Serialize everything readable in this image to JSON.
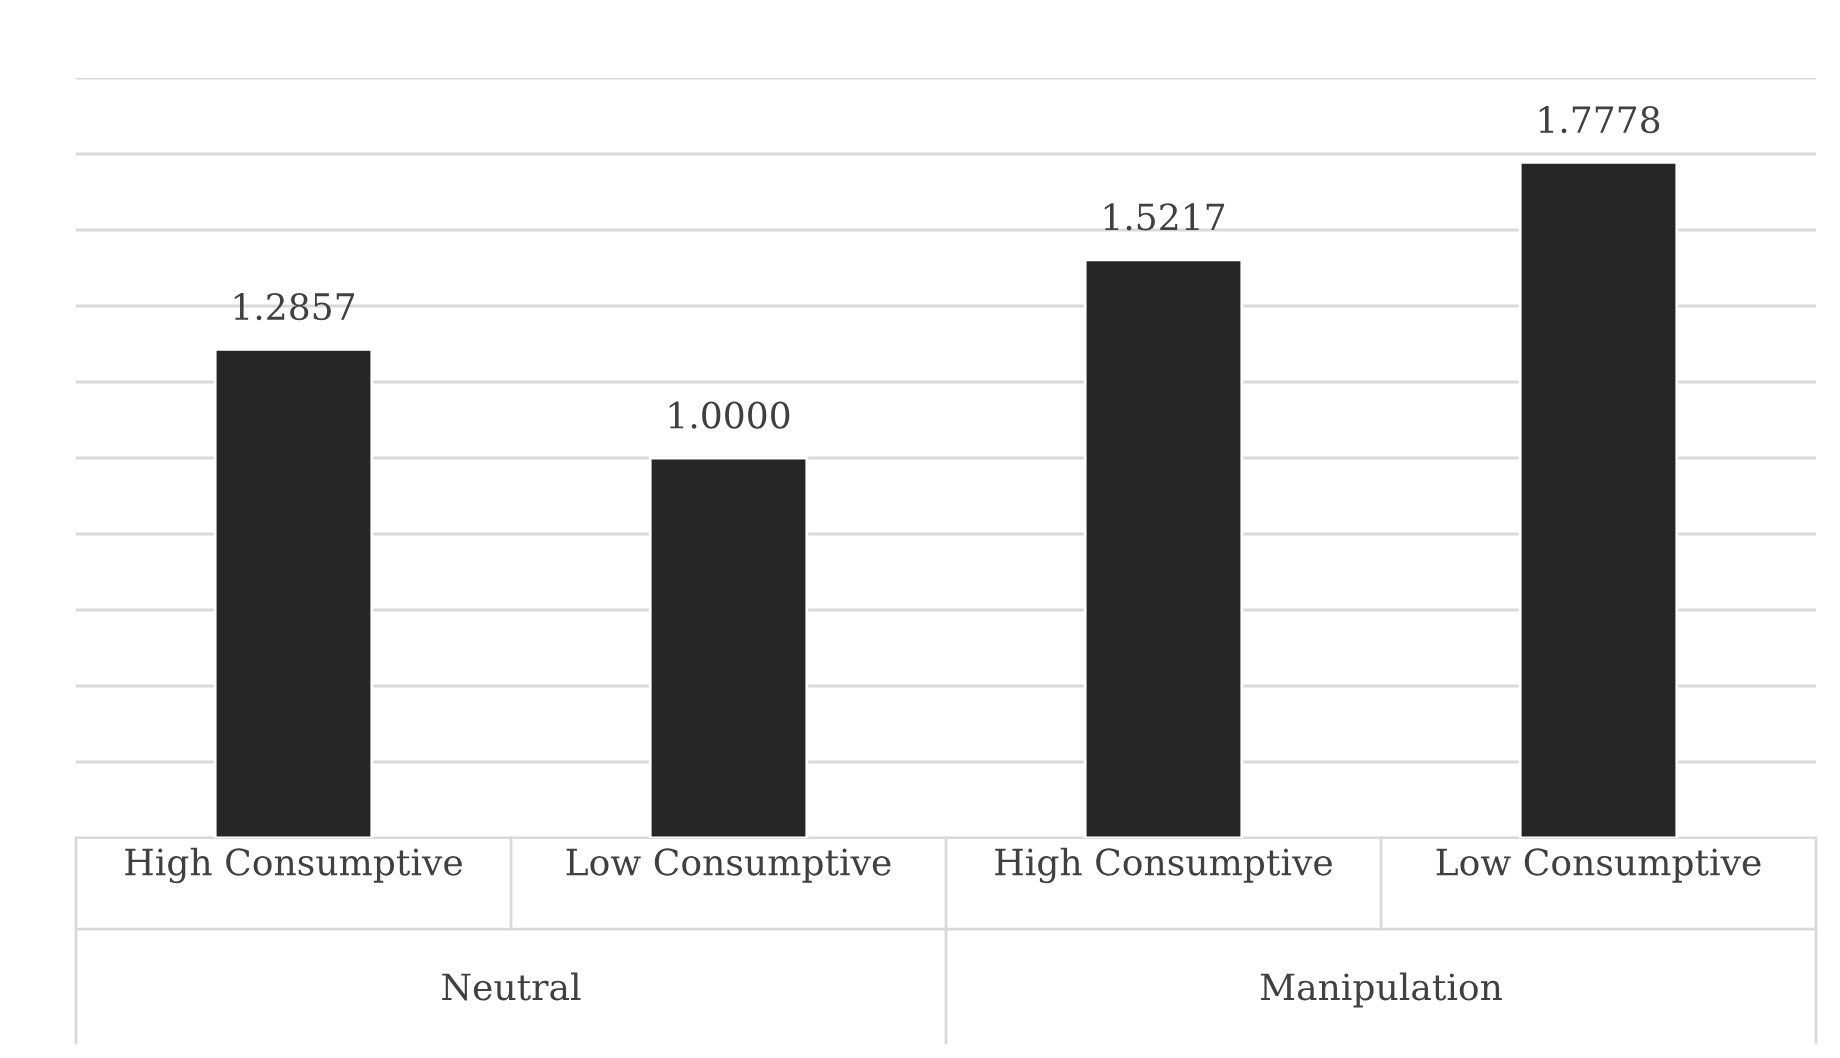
{
  "chart_data": {
    "type": "bar",
    "categories": [
      "High Consumptive",
      "Low Consumptive",
      "High Consumptive",
      "Low Consumptive"
    ],
    "values": [
      1.2857,
      1.0,
      1.5217,
      1.7778
    ],
    "value_labels": [
      "1.2857",
      "1.0000",
      "1.5217",
      "1.7778"
    ],
    "color": "#262626",
    "annotations": [
      "Neutral",
      "Manipulation"
    ],
    "ylim": [
      0,
      2
    ],
    "yticks": [
      0,
      {
        "value": 0.2,
        "label": null
      },
      {
        "value": 0.4,
        "label": null
      },
      {
        "value": 0.6,
        "label": null
      },
      {
        "value": 0.8,
        "label": null
      },
      {
        "value": 1.0,
        "label": null
      },
      {
        "value": 1.2,
        "label": null
      },
      {
        "value": 1.4,
        "label": null
      },
      {
        "value": 1.6,
        "label": null
      },
      {
        "value": 1.8,
        "label": null
      },
      {
        "value": 2.0,
        "label": null
      }
    ],
    "tick_labels": "x",
    "grid": "y"
  }
}
